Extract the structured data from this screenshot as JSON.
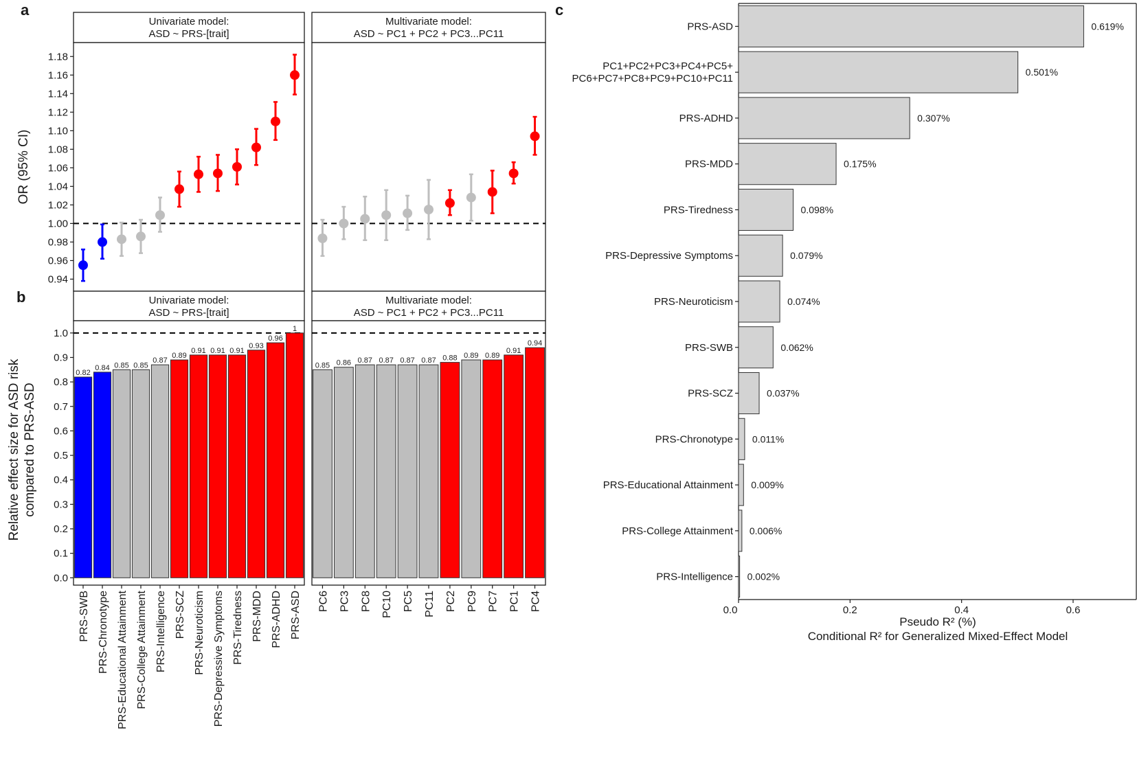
{
  "panel_letters": {
    "a": "a",
    "b": "b",
    "c": "c"
  },
  "chart_data": [
    {
      "id": "a",
      "type": "scatter",
      "ylabel": "OR (95% CI)",
      "ylim": [
        0.927,
        1.195
      ],
      "yticks": [
        "0.94",
        "0.96",
        "0.98",
        "1.00",
        "1.02",
        "1.04",
        "1.06",
        "1.08",
        "1.10",
        "1.12",
        "1.14",
        "1.16",
        "1.18"
      ],
      "reference_line": 1.0,
      "facets": [
        {
          "strip_line1": "Univariate model:",
          "strip_line2": "ASD ~ PRS-[trait]",
          "points": [
            {
              "category": "PRS-SWB",
              "or": 0.955,
              "lo": 0.938,
              "hi": 0.972,
              "color": "#0000ff"
            },
            {
              "category": "PRS-Chronotype",
              "or": 0.98,
              "lo": 0.962,
              "hi": 0.999,
              "color": "#0000ff"
            },
            {
              "category": "PRS-Educational Attainment",
              "or": 0.983,
              "lo": 0.965,
              "hi": 1.001,
              "color": "#bebebe"
            },
            {
              "category": "PRS-College Attainment",
              "or": 0.986,
              "lo": 0.968,
              "hi": 1.004,
              "color": "#bebebe"
            },
            {
              "category": "PRS-Intelligence",
              "or": 1.009,
              "lo": 0.991,
              "hi": 1.028,
              "color": "#bebebe"
            },
            {
              "category": "PRS-SCZ",
              "or": 1.037,
              "lo": 1.018,
              "hi": 1.056,
              "color": "#ff0000"
            },
            {
              "category": "PRS-Neuroticism",
              "or": 1.053,
              "lo": 1.034,
              "hi": 1.072,
              "color": "#ff0000"
            },
            {
              "category": "PRS-Depressive Symptoms",
              "or": 1.054,
              "lo": 1.035,
              "hi": 1.074,
              "color": "#ff0000"
            },
            {
              "category": "PRS-Tiredness",
              "or": 1.061,
              "lo": 1.042,
              "hi": 1.08,
              "color": "#ff0000"
            },
            {
              "category": "PRS-MDD",
              "or": 1.082,
              "lo": 1.063,
              "hi": 1.102,
              "color": "#ff0000"
            },
            {
              "category": "PRS-ADHD",
              "or": 1.11,
              "lo": 1.09,
              "hi": 1.131,
              "color": "#ff0000"
            },
            {
              "category": "PRS-ASD",
              "or": 1.16,
              "lo": 1.139,
              "hi": 1.182,
              "color": "#ff0000"
            }
          ]
        },
        {
          "strip_line1": "Multivariate model:",
          "strip_line2": "ASD ~ PC1 + PC2 + PC3...PC11",
          "points": [
            {
              "category": "PC6",
              "or": 0.984,
              "lo": 0.965,
              "hi": 1.004,
              "color": "#bebebe"
            },
            {
              "category": "PC3",
              "or": 1.0,
              "lo": 0.983,
              "hi": 1.018,
              "color": "#bebebe"
            },
            {
              "category": "PC8",
              "or": 1.005,
              "lo": 0.982,
              "hi": 1.029,
              "color": "#bebebe"
            },
            {
              "category": "PC10",
              "or": 1.009,
              "lo": 0.982,
              "hi": 1.036,
              "color": "#bebebe"
            },
            {
              "category": "PC5",
              "or": 1.011,
              "lo": 0.993,
              "hi": 1.03,
              "color": "#bebebe"
            },
            {
              "category": "PC11",
              "or": 1.015,
              "lo": 0.983,
              "hi": 1.047,
              "color": "#bebebe"
            },
            {
              "category": "PC2",
              "or": 1.022,
              "lo": 1.009,
              "hi": 1.036,
              "color": "#ff0000"
            },
            {
              "category": "PC9",
              "or": 1.028,
              "lo": 1.003,
              "hi": 1.053,
              "color": "#bebebe"
            },
            {
              "category": "PC7",
              "or": 1.034,
              "lo": 1.011,
              "hi": 1.057,
              "color": "#ff0000"
            },
            {
              "category": "PC1",
              "or": 1.054,
              "lo": 1.043,
              "hi": 1.066,
              "color": "#ff0000"
            },
            {
              "category": "PC4",
              "or": 1.094,
              "lo": 1.074,
              "hi": 1.115,
              "color": "#ff0000"
            }
          ]
        }
      ]
    },
    {
      "id": "b",
      "type": "bar",
      "ylabel_line1": "Relative effect size for ASD risk",
      "ylabel_line2": "compared to PRS-ASD",
      "ylim": [
        -0.03,
        1.05
      ],
      "yticks": [
        "0.0",
        "0.1",
        "0.2",
        "0.3",
        "0.4",
        "0.5",
        "0.6",
        "0.7",
        "0.8",
        "0.9",
        "1.0"
      ],
      "reference_line": 1.0,
      "facets": [
        {
          "strip_line1": "Univariate model:",
          "strip_line2": "ASD ~ PRS-[trait]",
          "categories": [
            "PRS-SWB",
            "PRS-Chronotype",
            "PRS-Educational Attainment",
            "PRS-College Attainment",
            "PRS-Intelligence",
            "PRS-SCZ",
            "PRS-Neuroticism",
            "PRS-Depressive Symptoms",
            "PRS-Tiredness",
            "PRS-MDD",
            "PRS-ADHD",
            "PRS-ASD"
          ],
          "values": [
            0.82,
            0.84,
            0.85,
            0.85,
            0.87,
            0.89,
            0.91,
            0.91,
            0.91,
            0.93,
            0.96,
            1.0
          ],
          "labels": [
            "0.82",
            "0.84",
            "0.85",
            "0.85",
            "0.87",
            "0.89",
            "0.91",
            "0.91",
            "0.91",
            "0.93",
            "0.96",
            "1"
          ],
          "colors": [
            "#0000ff",
            "#0000ff",
            "#bebebe",
            "#bebebe",
            "#bebebe",
            "#ff0000",
            "#ff0000",
            "#ff0000",
            "#ff0000",
            "#ff0000",
            "#ff0000",
            "#ff0000"
          ]
        },
        {
          "strip_line1": "Multivariate model:",
          "strip_line2": "ASD ~ PC1 + PC2 + PC3...PC11",
          "categories": [
            "PC6",
            "PC3",
            "PC8",
            "PC10",
            "PC5",
            "PC11",
            "PC2",
            "PC9",
            "PC7",
            "PC1",
            "PC4"
          ],
          "values": [
            0.85,
            0.86,
            0.87,
            0.87,
            0.87,
            0.87,
            0.88,
            0.89,
            0.89,
            0.91,
            0.94
          ],
          "labels": [
            "0.85",
            "0.86",
            "0.87",
            "0.87",
            "0.87",
            "0.87",
            "0.88",
            "0.89",
            "0.89",
            "0.91",
            "0.94"
          ],
          "colors": [
            "#bebebe",
            "#bebebe",
            "#bebebe",
            "#bebebe",
            "#bebebe",
            "#bebebe",
            "#ff0000",
            "#bebebe",
            "#ff0000",
            "#ff0000",
            "#ff0000"
          ]
        }
      ]
    },
    {
      "id": "c",
      "type": "bar",
      "orientation": "horizontal",
      "xlabel_line1": "Pseudo R² (%)",
      "xlabel_line2": "Conditional R² for Generalized Mixed-Effect Model",
      "xlim": [
        0,
        0.7
      ],
      "xticks": [
        "0.0",
        "0.2",
        "0.4",
        "0.6"
      ],
      "bar_color": "#d3d3d3",
      "bars": [
        {
          "category": "PRS-ASD",
          "value": 0.619,
          "label": "0.619%"
        },
        {
          "category": "PC1+PC2+PC3+PC4+PC5+",
          "category_line2": "PC6+PC7+PC8+PC9+PC10+PC11",
          "value": 0.501,
          "label": "0.501%"
        },
        {
          "category": "PRS-ADHD",
          "value": 0.307,
          "label": "0.307%"
        },
        {
          "category": "PRS-MDD",
          "value": 0.175,
          "label": "0.175%"
        },
        {
          "category": "PRS-Tiredness",
          "value": 0.098,
          "label": "0.098%"
        },
        {
          "category": "PRS-Depressive Symptoms",
          "value": 0.079,
          "label": "0.079%"
        },
        {
          "category": "PRS-Neuroticism",
          "value": 0.074,
          "label": "0.074%"
        },
        {
          "category": "PRS-SWB",
          "value": 0.062,
          "label": "0.062%"
        },
        {
          "category": "PRS-SCZ",
          "value": 0.037,
          "label": "0.037%"
        },
        {
          "category": "PRS-Chronotype",
          "value": 0.011,
          "label": "0.011%"
        },
        {
          "category": "PRS-Educational Attainment",
          "value": 0.009,
          "label": "0.009%"
        },
        {
          "category": "PRS-College Attainment",
          "value": 0.006,
          "label": "0.006%"
        },
        {
          "category": "PRS-Intelligence",
          "value": 0.002,
          "label": "0.002%"
        }
      ]
    }
  ]
}
